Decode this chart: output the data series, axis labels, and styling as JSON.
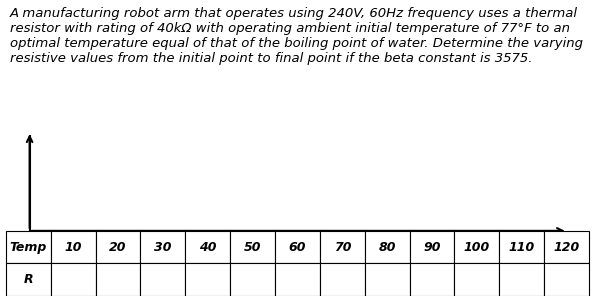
{
  "paragraph": "A manufacturing robot arm that operates using 240V, 60Hz frequency uses a thermal resistor with rating of 40kΩ with operating ambient initial temperature of 77°F to an optimal temperature equal of that of the boiling point of water. Determine the varying resistive values from the initial point to final point if the beta constant is 3575.",
  "table_headers": [
    "Temp",
    10,
    20,
    30,
    40,
    50,
    60,
    70,
    80,
    90,
    100,
    110,
    120
  ],
  "row2_label": "R",
  "background_color": "#ffffff",
  "text_color": "#000000",
  "font_size_paragraph": 9.5,
  "font_size_table": 9.0
}
